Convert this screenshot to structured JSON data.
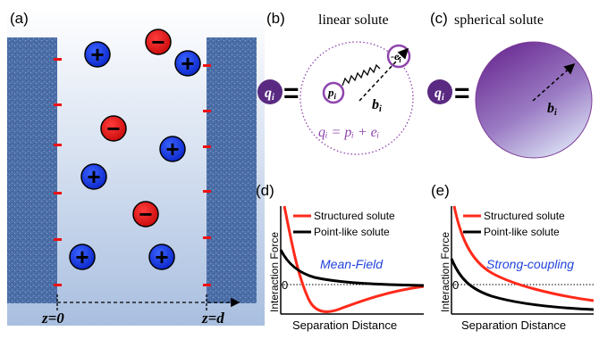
{
  "panels": {
    "a": {
      "tag": "(a)",
      "z_left": "z=0",
      "z_right": "z=d"
    },
    "b": {
      "tag": "(b)",
      "title": "linear solute",
      "q": "q",
      "q_sub": "i",
      "p": "p",
      "p_sub": "i",
      "e": "-e",
      "e_sub": "i",
      "b": "b",
      "b_sub": "i",
      "equation": "qᵢ = pᵢ + eᵢ"
    },
    "c": {
      "tag": "(c)",
      "title": "spherical solute",
      "q": "q",
      "q_sub": "i",
      "b": "b",
      "b_sub": "i"
    },
    "d": {
      "tag": "(d)",
      "legend_structured": "Structured solute",
      "legend_point": "Point-like solute",
      "annotation": "Mean-Field",
      "ylabel": "Interaction Force",
      "xlabel": "Separation Distance",
      "zero": "0"
    },
    "e": {
      "tag": "(e)",
      "legend_structured": "Structured solute",
      "legend_point": "Point-like solute",
      "annotation": "Strong-coupling",
      "ylabel": "Interaction Force",
      "xlabel": "Separation Distance",
      "zero": "0"
    }
  },
  "symbols": {
    "plus": "+",
    "minus": "−",
    "equals": "="
  },
  "colors": {
    "structured": "#ff2a1a",
    "point": "#000000",
    "positive": "#1438e6",
    "negative": "#e61414",
    "annotation": "#2244dd",
    "purple": "#7d3c98"
  }
}
